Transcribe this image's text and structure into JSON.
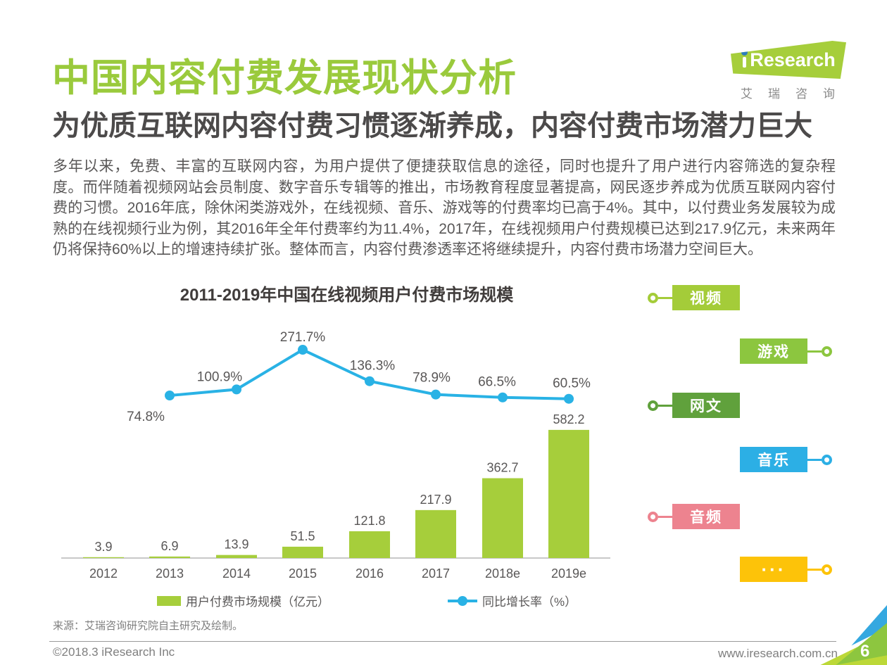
{
  "header": {
    "title": "中国内容付费发展现状分析",
    "subtitle": "为优质互联网内容付费习惯逐渐养成，内容付费市场潜力巨大",
    "logo": {
      "brand": "Research",
      "caption": "艾瑞咨询"
    }
  },
  "intro": {
    "paragraph": "多年以来，免费、丰富的互联网内容，为用户提供了便捷获取信息的途径，同时也提升了用户进行内容筛选的复杂程度。而伴随着视频网站会员制度、数字音乐专辑等的推出，市场教育程度显著提高，网民逐步养成为优质互联网内容付费的习惯。2016年底，除休闲类游戏外，在线视频、音乐、游戏等的付费率均已高于4%。其中，以付费业务发展较为成熟的在线视频行业为例，其2016年全年付费率约为11.4%，2017年，在线视频用户付费规模已达到217.9亿元，未来两年仍将保持60%以上的增速持续扩张。整体而言，内容付费渗透率还将继续提升，内容付费市场潜力空间巨大。"
  },
  "chart_data": {
    "type": "bar",
    "title": "2011-2019年中国在线视频用户付费市场规模",
    "categories": [
      "2012",
      "2013",
      "2014",
      "2015",
      "2016",
      "2017",
      "2018e",
      "2019e"
    ],
    "series": [
      {
        "name": "用户付费市场规模（亿元）",
        "type": "bar",
        "color": "#a6ce3b",
        "values": [
          3.9,
          6.9,
          13.9,
          51.5,
          121.8,
          217.9,
          362.7,
          582.2
        ]
      },
      {
        "name": "同比增长率（%）",
        "type": "line",
        "color": "#29b2e5",
        "categories": [
          "2013",
          "2014",
          "2015",
          "2016",
          "2017",
          "2018e",
          "2019e"
        ],
        "values": [
          74.8,
          100.9,
          271.7,
          136.3,
          78.9,
          66.5,
          60.5
        ]
      }
    ],
    "ylabel": "",
    "xlabel": "",
    "grid": false,
    "legend_position": "bottom"
  },
  "side_tags": [
    {
      "label": "视频",
      "color": "#a4cc39",
      "side": "left"
    },
    {
      "label": "游戏",
      "color": "#8cc63f",
      "side": "right"
    },
    {
      "label": "网文",
      "color": "#60a13c",
      "side": "left"
    },
    {
      "label": "音乐",
      "color": "#2cafe5",
      "side": "right"
    },
    {
      "label": "音频",
      "color": "#ed838f",
      "side": "left"
    },
    {
      "label": "···",
      "color": "#fdc309",
      "side": "right"
    }
  ],
  "source": "来源：艾瑞咨询研究院自主研究及绘制。",
  "footer": {
    "copyright": "©2018.3 iResearch Inc",
    "website": "www.iresearch.com.cn",
    "page": "6"
  }
}
